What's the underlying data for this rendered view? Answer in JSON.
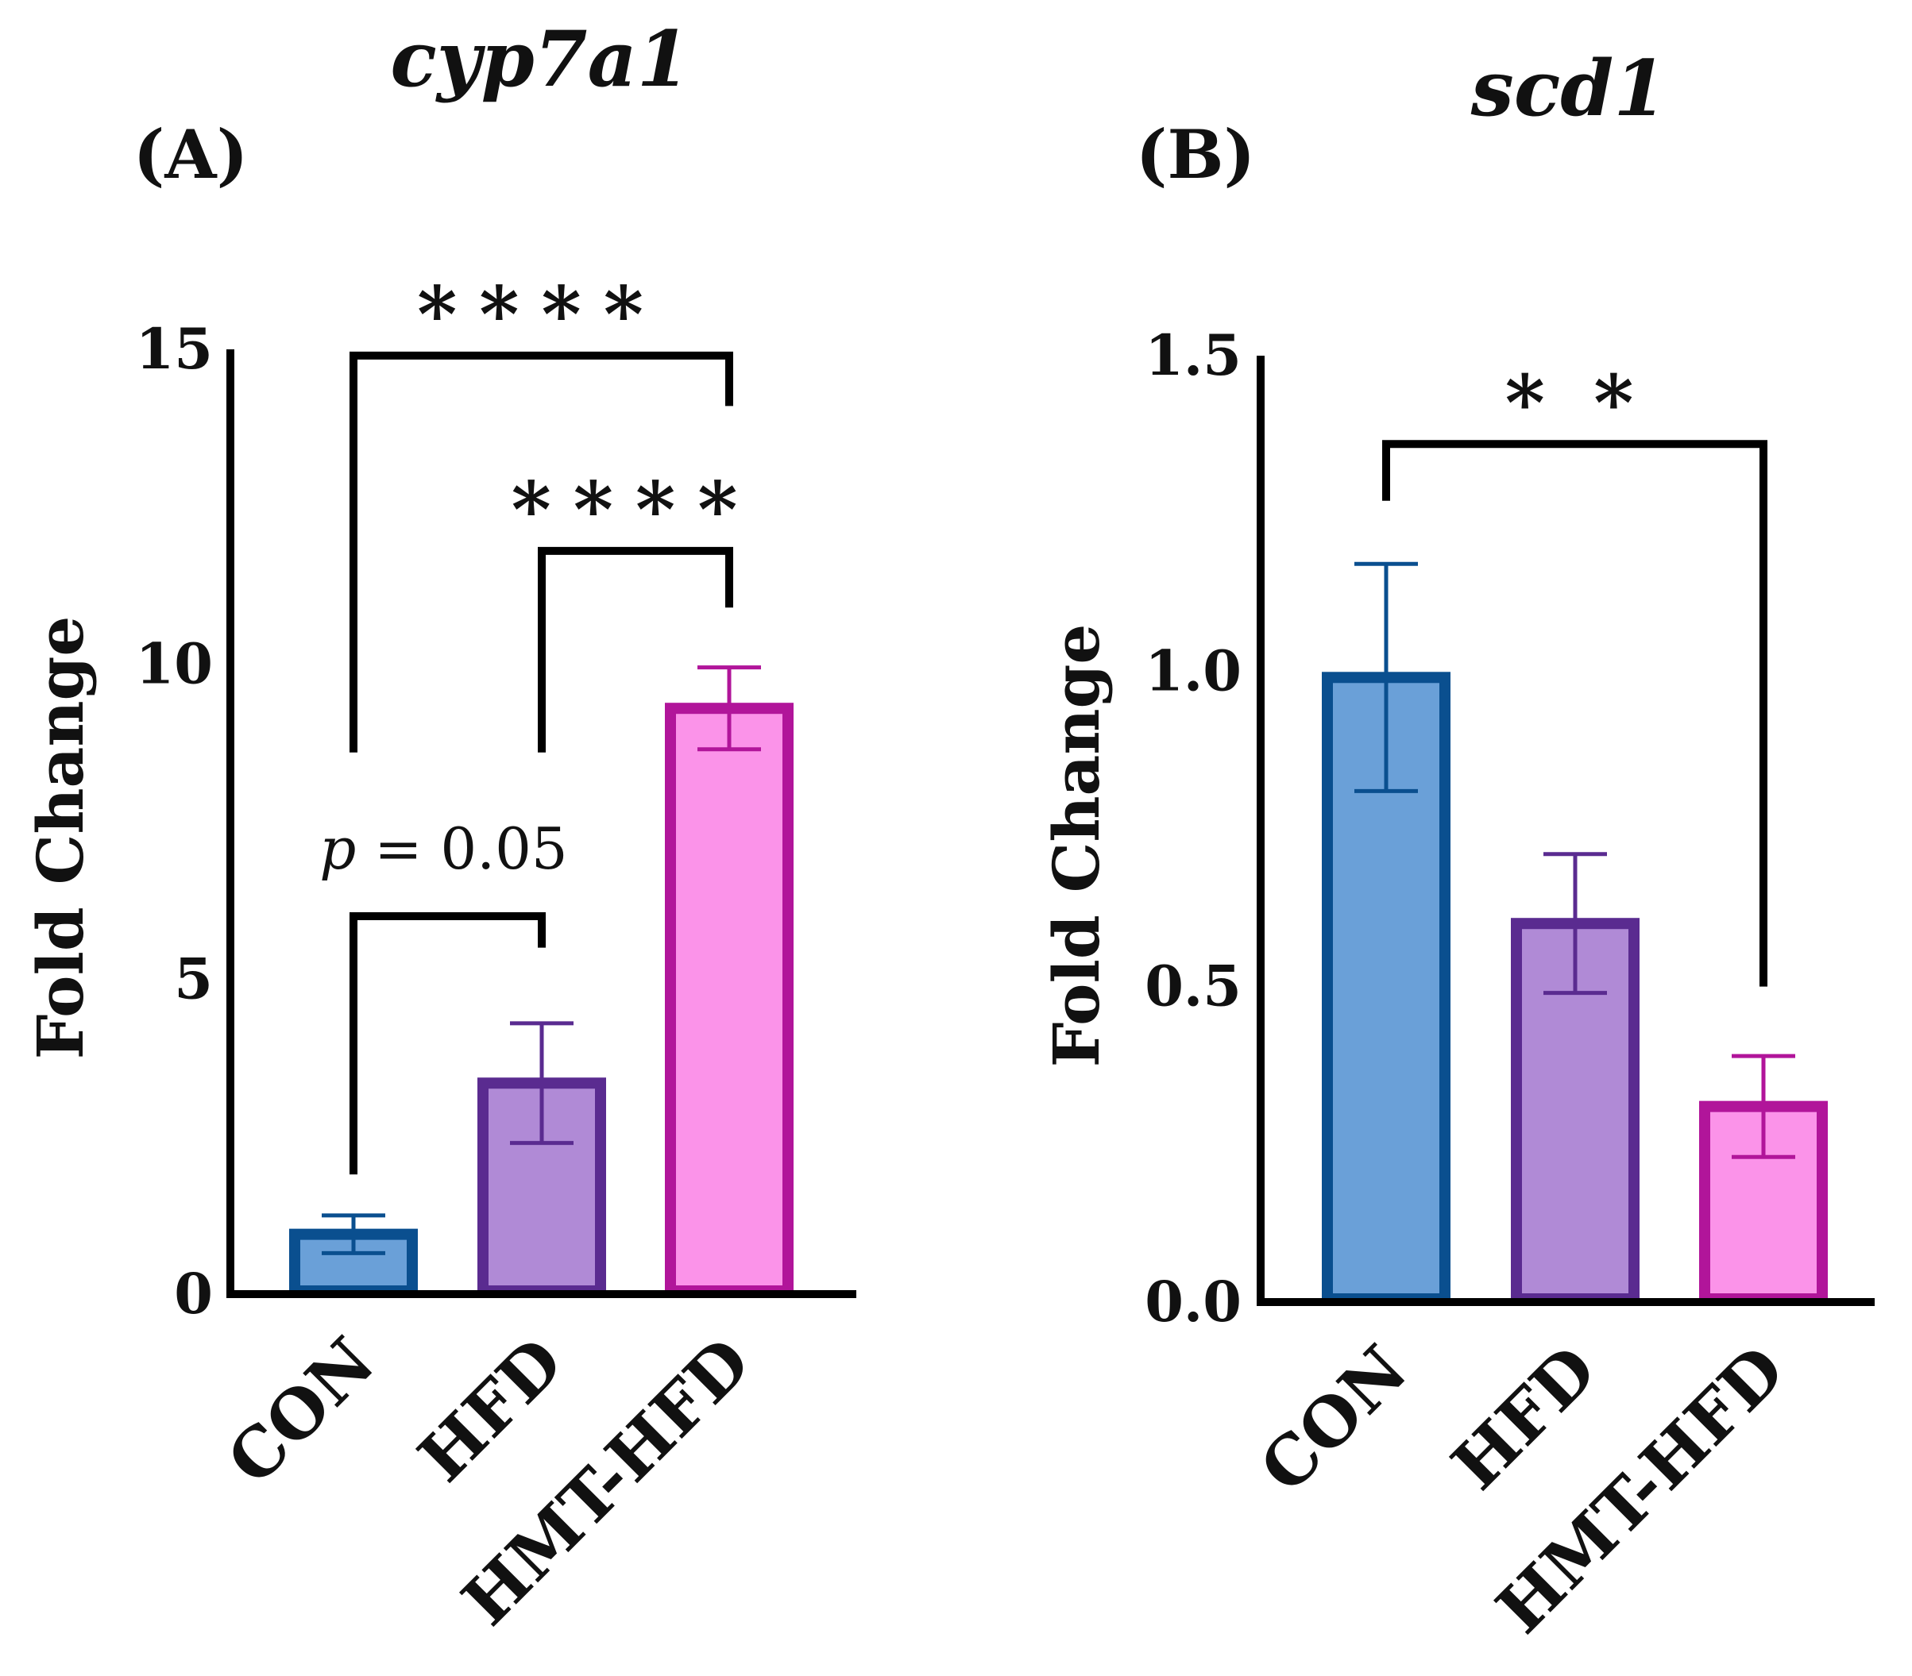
{
  "chart_data": [
    {
      "type": "bar",
      "panel": "(A)",
      "title": "cyp7a1",
      "xlabel": "",
      "ylabel": "Fold Change",
      "ylim": [
        0,
        15
      ],
      "yticks": [
        "0",
        "5",
        "10",
        "15"
      ],
      "yticks_values": [
        0,
        5,
        10,
        15
      ],
      "categories": [
        "CON",
        "HFD",
        "HMT-HFD"
      ],
      "values": [
        0.95,
        3.35,
        9.3
      ],
      "errors": [
        0.3,
        0.95,
        0.65
      ],
      "colors": {
        "fill": [
          "#6aa0d8",
          "#b08ad6",
          "#fb93e9"
        ],
        "edge": [
          "#0a4f8f",
          "#5a2b90",
          "#b1159a"
        ]
      },
      "annotations": [
        {
          "from": 0,
          "to": 1,
          "text": "p = 0.05",
          "p_italic": "p",
          "p_rest": " = 0.05",
          "y": 6.0,
          "left_tick_bottom": 1.9,
          "right_tick_bottom": 5.5
        },
        {
          "from": 1,
          "to": 2,
          "text": "****",
          "y": 11.8,
          "left_tick_bottom": 8.6,
          "right_tick_bottom": 10.9
        },
        {
          "from": 0,
          "to": 2,
          "text": "****",
          "y": 14.9,
          "left_tick_bottom": 8.6,
          "right_tick_bottom": 14.1
        }
      ]
    },
    {
      "type": "bar",
      "panel": "(B)",
      "title": "scd1",
      "xlabel": "",
      "ylabel": "Fold Change",
      "ylim": [
        0,
        1.5
      ],
      "yticks": [
        "0.0",
        "0.5",
        "1.0",
        "1.5"
      ],
      "yticks_values": [
        0,
        0.5,
        1.0,
        1.5
      ],
      "categories": [
        "CON",
        "HFD",
        "HMT-HFD"
      ],
      "values": [
        0.99,
        0.6,
        0.31
      ],
      "errors": [
        0.18,
        0.11,
        0.08
      ],
      "colors": {
        "fill": [
          "#6aa0d8",
          "#b08ad6",
          "#fb93e9"
        ],
        "edge": [
          "#0a4f8f",
          "#5a2b90",
          "#b1159a"
        ]
      },
      "annotations": [
        {
          "from": 0,
          "to": 2,
          "text": "* *",
          "y": 1.36,
          "left_tick_bottom": 1.27,
          "right_tick_bottom": 0.5
        }
      ]
    }
  ]
}
